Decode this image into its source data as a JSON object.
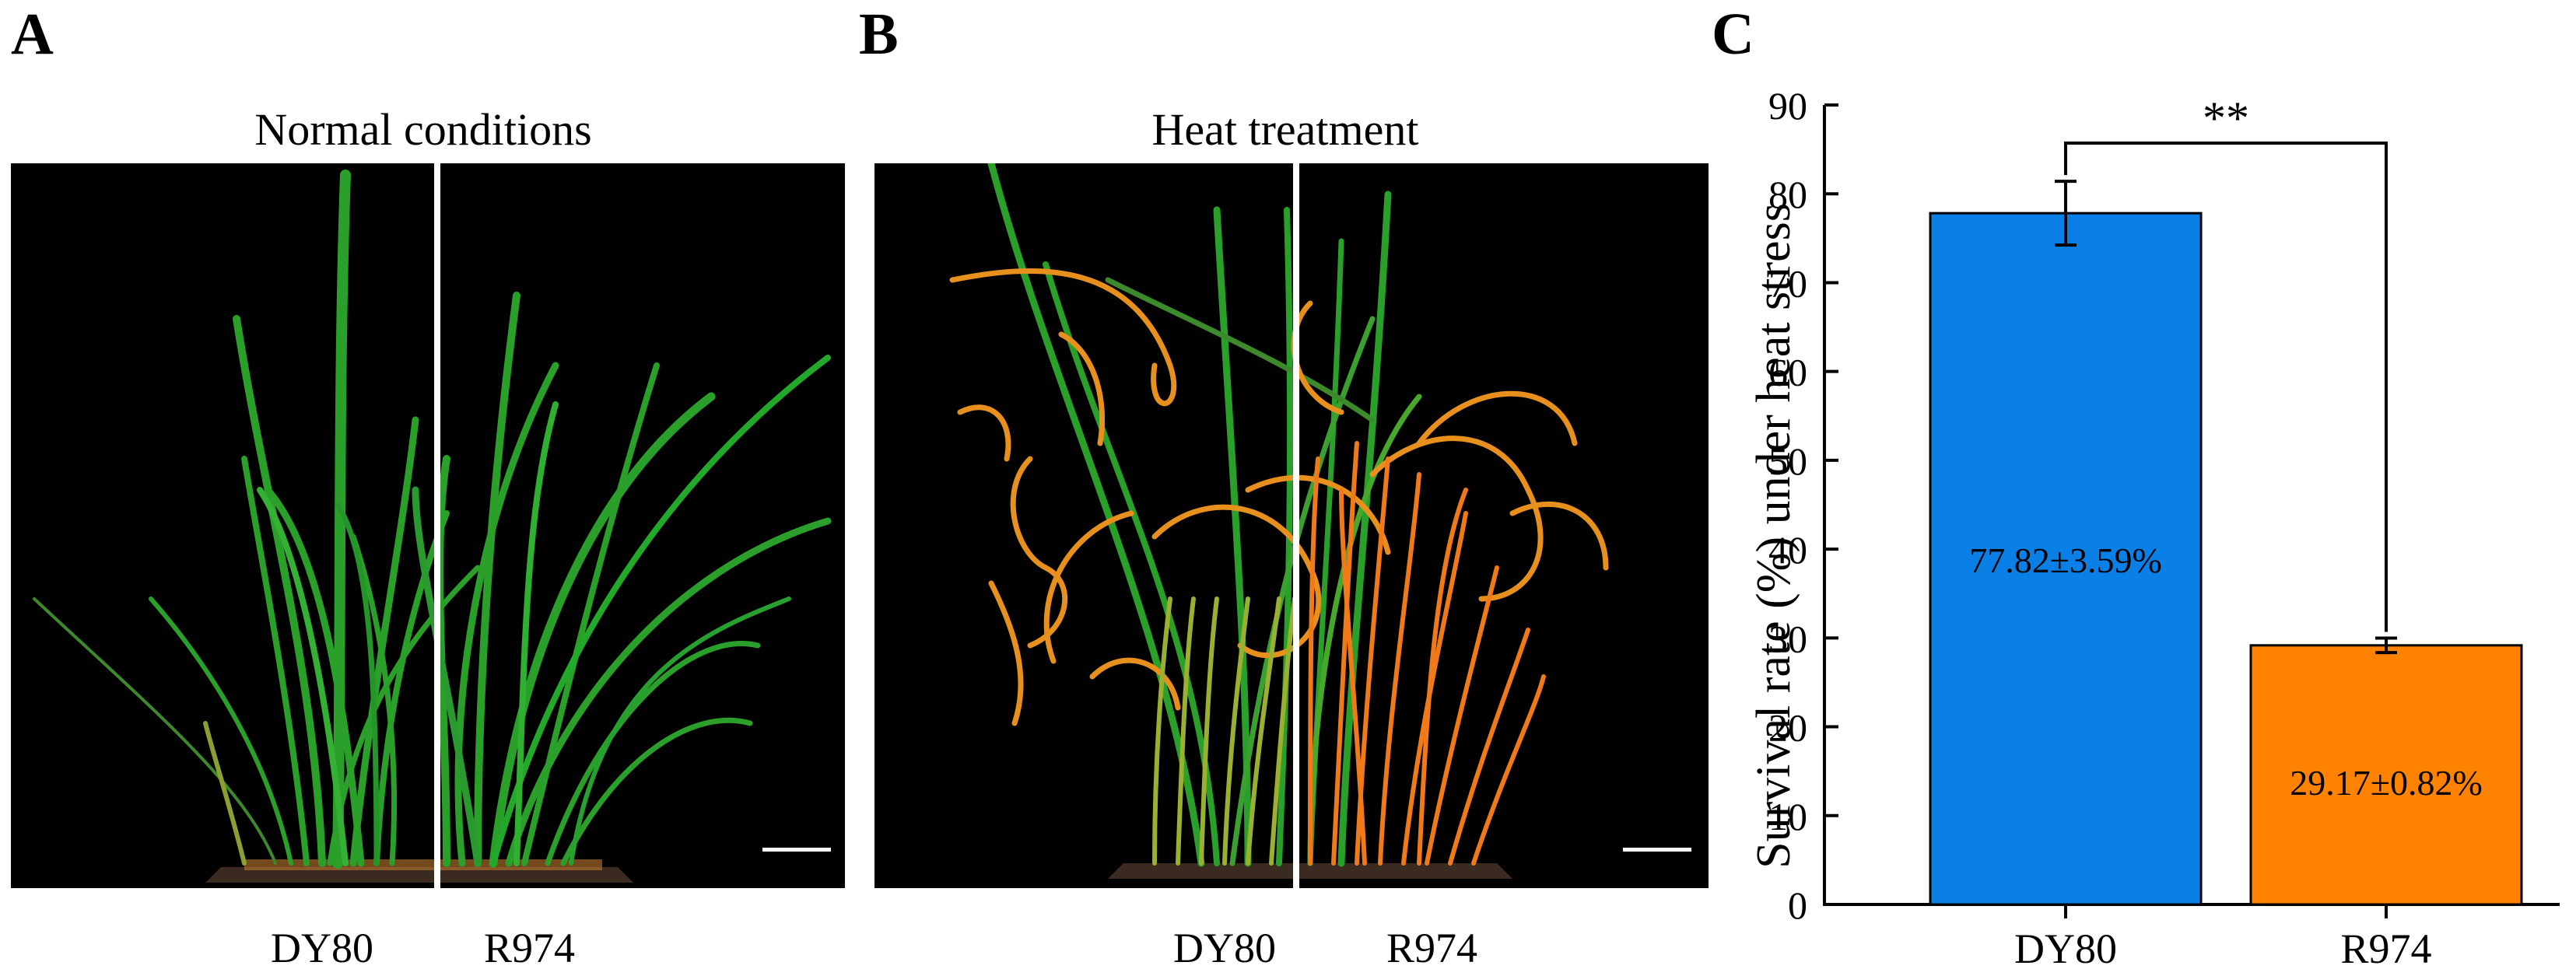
{
  "panels": {
    "a": {
      "letter": "A",
      "title": "Normal conditions",
      "genotypes": [
        "DY80",
        "R974"
      ]
    },
    "b": {
      "letter": "B",
      "title": "Heat treatment",
      "genotypes": [
        "DY80",
        "R974"
      ]
    },
    "c": {
      "letter": "C"
    }
  },
  "colors": {
    "dy80_bar": "#0a80e6",
    "r974_bar": "#ff8300",
    "healthy_leaf": "#2aa02a",
    "wilted_leaf": "#e8901e",
    "photo_bg": "#000000"
  },
  "chart_data": {
    "type": "bar",
    "categories": [
      "DY80",
      "R974"
    ],
    "values": [
      77.82,
      29.17
    ],
    "errors": [
      3.59,
      0.82
    ],
    "value_labels": [
      "77.82±3.59%",
      "29.17±0.82%"
    ],
    "ylabel": "Survival rate (%) under heat stress",
    "xlabel": "",
    "ylim": [
      0,
      90
    ],
    "yticks": [
      0,
      10,
      20,
      30,
      40,
      50,
      60,
      70,
      80,
      90
    ],
    "significance": "**",
    "grid": false,
    "legend": "none"
  }
}
